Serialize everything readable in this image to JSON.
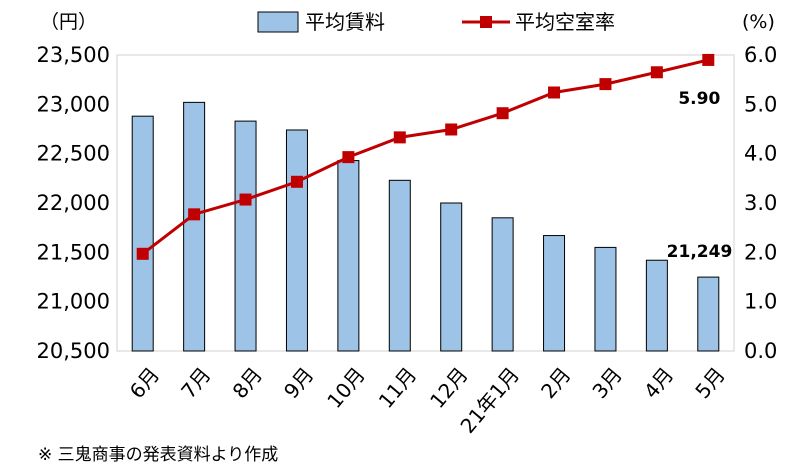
{
  "chart_data": {
    "type": "bar+line",
    "categories": [
      "6月",
      "7月",
      "8月",
      "9月",
      "10月",
      "11月",
      "12月",
      "21年1月",
      "2月",
      "3月",
      "4月",
      "5月"
    ],
    "series": [
      {
        "name": "平均賃料",
        "type": "bar",
        "axis": "left",
        "color": "#9dc3e6",
        "values": [
          22880,
          23020,
          22830,
          22740,
          22430,
          22230,
          22000,
          21850,
          21670,
          21550,
          21420,
          21249
        ]
      },
      {
        "name": "平均空室率",
        "type": "line",
        "axis": "right",
        "color": "#c00000",
        "values": [
          1.97,
          2.77,
          3.07,
          3.43,
          3.93,
          4.33,
          4.49,
          4.82,
          5.24,
          5.41,
          5.65,
          5.9
        ]
      }
    ],
    "left_axis": {
      "unit": "（円）",
      "ylim": [
        20500,
        23500
      ],
      "ticks": [
        20500,
        21000,
        21500,
        22000,
        22500,
        23000,
        23500
      ],
      "tick_labels": [
        "20,500",
        "21,000",
        "21,500",
        "22,000",
        "22,500",
        "23,000",
        "23,500"
      ]
    },
    "right_axis": {
      "unit": "(%)",
      "ylim": [
        0,
        6
      ],
      "ticks": [
        0,
        1,
        2,
        3,
        4,
        5,
        6
      ],
      "tick_labels": [
        "0.0",
        "1.0",
        "2.0",
        "3.0",
        "4.0",
        "5.0",
        "6.0"
      ]
    },
    "annotations": [
      {
        "text": "5.90",
        "series": "平均空室率",
        "index": 11
      },
      {
        "text": "21,249",
        "series": "平均賃料",
        "index": 11
      }
    ],
    "legend": {
      "position": "top",
      "entries": [
        "平均賃料",
        "平均空室率"
      ]
    },
    "grid": false
  },
  "note": "※ 三鬼商事の発表資料より作成"
}
